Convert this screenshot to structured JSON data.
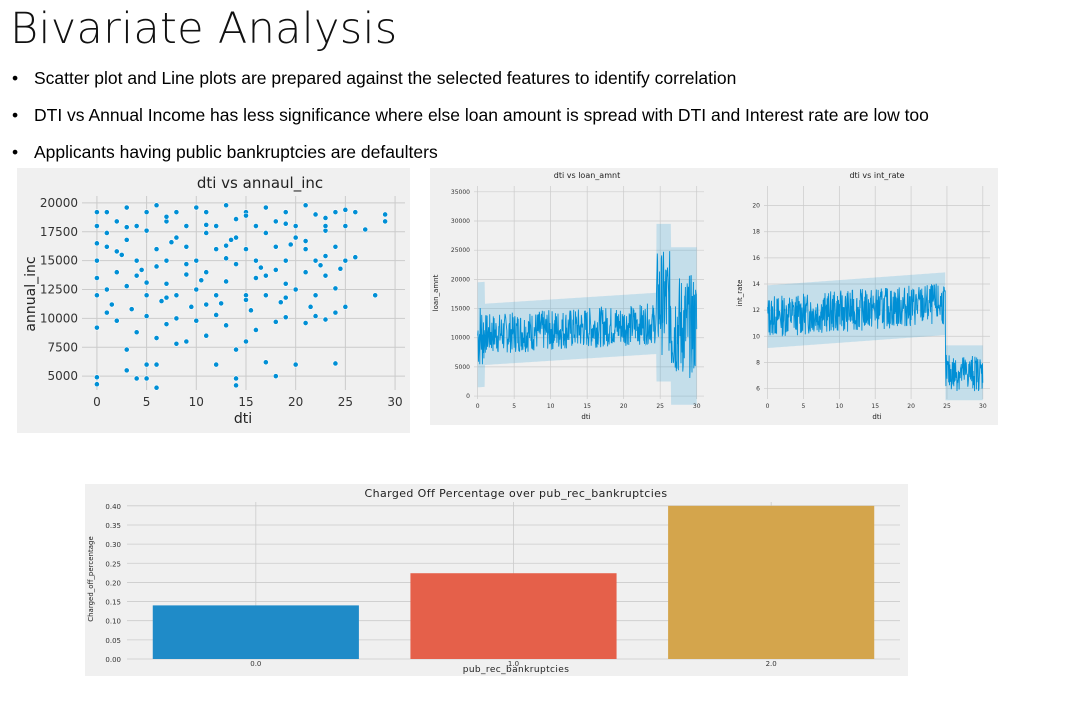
{
  "slide": {
    "title": "Bivariate Analysis",
    "bullets": [
      "Scatter plot and Line plots are prepared against the selected features to identify correlation",
      "DTI vs Annual Income has less significance where else loan amount is spread with DTI and Interest rate are low too",
      "Applicants having public bankruptcies are defaulters"
    ]
  },
  "colors": {
    "series_blue": "#008fd5",
    "bar1": "#1f8bc8",
    "bar2": "#e5604a",
    "bar3": "#d4a54c",
    "panel_bg": "#f0f0f0",
    "grid": "#cbcbcb"
  },
  "chart_data": [
    {
      "type": "scatter",
      "title": "dti vs annaul_inc",
      "xlabel": "dti",
      "ylabel": "annual_inc",
      "xlim": [
        -1.5,
        31
      ],
      "ylim": [
        3800,
        20600
      ],
      "xticks": [
        0,
        5,
        10,
        15,
        20,
        25,
        30
      ],
      "yticks": [
        5000,
        7500,
        10000,
        12500,
        15000,
        17500,
        20000
      ],
      "grid": true,
      "points": [
        [
          0,
          4900
        ],
        [
          0,
          4300
        ],
        [
          3,
          5500
        ],
        [
          4,
          4800
        ],
        [
          5,
          6000
        ],
        [
          5,
          4800
        ],
        [
          6,
          4000
        ],
        [
          6,
          6000
        ],
        [
          8,
          7800
        ],
        [
          9,
          8000
        ],
        [
          11,
          8500
        ],
        [
          12,
          6000
        ],
        [
          14,
          4200
        ],
        [
          14,
          4800
        ],
        [
          14,
          7300
        ],
        [
          15,
          8000
        ],
        [
          17,
          6200
        ],
        [
          18,
          5000
        ],
        [
          20,
          6000
        ],
        [
          24,
          6100
        ],
        [
          0,
          9200
        ],
        [
          1,
          10500
        ],
        [
          2,
          9800
        ],
        [
          3,
          7300
        ],
        [
          4,
          8800
        ],
        [
          5,
          10200
        ],
        [
          6,
          8300
        ],
        [
          7,
          9500
        ],
        [
          8,
          10000
        ],
        [
          10,
          9800
        ],
        [
          12,
          10300
        ],
        [
          13,
          9400
        ],
        [
          16,
          9000
        ],
        [
          18,
          9700
        ],
        [
          19,
          10100
        ],
        [
          21,
          9600
        ],
        [
          22,
          10200
        ],
        [
          23,
          9900
        ],
        [
          24,
          10500
        ],
        [
          25,
          11000
        ],
        [
          0,
          12000
        ],
        [
          0,
          13500
        ],
        [
          1,
          12500
        ],
        [
          2,
          14000
        ],
        [
          3,
          12800
        ],
        [
          4,
          13700
        ],
        [
          5,
          12000
        ],
        [
          6,
          14500
        ],
        [
          7,
          13000
        ],
        [
          8,
          12000
        ],
        [
          9,
          13800
        ],
        [
          10,
          12500
        ],
        [
          11,
          14000
        ],
        [
          12,
          12000
        ],
        [
          13,
          13200
        ],
        [
          14,
          14700
        ],
        [
          15,
          12000
        ],
        [
          16,
          13500
        ],
        [
          17,
          12000
        ],
        [
          18,
          14200
        ],
        [
          19,
          13000
        ],
        [
          20,
          12500
        ],
        [
          21,
          14000
        ],
        [
          22,
          12000
        ],
        [
          23,
          13700
        ],
        [
          24,
          12600
        ],
        [
          28,
          12000
        ],
        [
          0,
          15000
        ],
        [
          0,
          16500
        ],
        [
          1,
          17400
        ],
        [
          2,
          15800
        ],
        [
          3,
          16800
        ],
        [
          4,
          15000
        ],
        [
          5,
          17600
        ],
        [
          6,
          16000
        ],
        [
          7,
          15000
        ],
        [
          8,
          17000
        ],
        [
          9,
          16200
        ],
        [
          10,
          15000
        ],
        [
          11,
          17400
        ],
        [
          12,
          16000
        ],
        [
          13,
          15200
        ],
        [
          14,
          17000
        ],
        [
          15,
          16000
        ],
        [
          16,
          15000
        ],
        [
          17,
          17400
        ],
        [
          18,
          16200
        ],
        [
          19,
          15000
        ],
        [
          20,
          17000
        ],
        [
          21,
          16000
        ],
        [
          22,
          15000
        ],
        [
          23,
          17600
        ],
        [
          24,
          16200
        ],
        [
          25,
          15000
        ],
        [
          26,
          15300
        ],
        [
          0,
          18000
        ],
        [
          0,
          19200
        ],
        [
          1,
          19200
        ],
        [
          2,
          18400
        ],
        [
          3,
          19600
        ],
        [
          4,
          18000
        ],
        [
          5,
          19200
        ],
        [
          6,
          19800
        ],
        [
          7,
          18400
        ],
        [
          8,
          19200
        ],
        [
          9,
          18000
        ],
        [
          10,
          19600
        ],
        [
          11,
          19200
        ],
        [
          12,
          18000
        ],
        [
          13,
          19800
        ],
        [
          14,
          18600
        ],
        [
          15,
          19200
        ],
        [
          16,
          18000
        ],
        [
          17,
          19600
        ],
        [
          18,
          18400
        ],
        [
          19,
          19200
        ],
        [
          20,
          18000
        ],
        [
          21,
          19800
        ],
        [
          22,
          19000
        ],
        [
          23,
          18000
        ],
        [
          24,
          19200
        ],
        [
          25,
          18000
        ],
        [
          26,
          19200
        ],
        [
          27,
          17700
        ],
        [
          29,
          18400
        ],
        [
          29,
          19000
        ],
        [
          1.5,
          11200
        ],
        [
          3.5,
          10800
        ],
        [
          6.5,
          11500
        ],
        [
          9.5,
          11000
        ],
        [
          12.5,
          11300
        ],
        [
          15.5,
          10700
        ],
        [
          18.5,
          11400
        ],
        [
          21.5,
          11000
        ],
        [
          2.5,
          15500
        ],
        [
          4.5,
          14200
        ],
        [
          7.5,
          16600
        ],
        [
          10.5,
          13300
        ],
        [
          13.5,
          16800
        ],
        [
          16.5,
          14400
        ],
        [
          19.5,
          16400
        ],
        [
          22.5,
          14600
        ],
        [
          24.5,
          14300
        ],
        [
          1,
          16200
        ],
        [
          5,
          13100
        ],
        [
          9,
          14700
        ],
        [
          13,
          16300
        ],
        [
          17,
          13700
        ],
        [
          21,
          16700
        ],
        [
          23,
          15400
        ],
        [
          7,
          11800
        ],
        [
          11,
          11200
        ],
        [
          15,
          11600
        ],
        [
          19,
          11800
        ],
        [
          3,
          17900
        ],
        [
          7,
          18800
        ],
        [
          11,
          18100
        ],
        [
          15,
          18900
        ],
        [
          19,
          18200
        ],
        [
          23,
          18700
        ],
        [
          25,
          19400
        ]
      ]
    },
    {
      "type": "line",
      "title": "dti vs loan_amnt",
      "xlabel": "dti",
      "ylabel": "loan_amnt",
      "xlim": [
        -0.5,
        31
      ],
      "ylim": [
        -500,
        36000
      ],
      "xticks": [
        0,
        5,
        10,
        15,
        20,
        25,
        30
      ],
      "yticks": [
        0,
        5000,
        10000,
        15000,
        20000,
        25000,
        30000,
        35000
      ],
      "grid": true
    },
    {
      "type": "line",
      "title": "dti vs int_rate",
      "xlabel": "dti",
      "ylabel": "int_rate",
      "xlim": [
        -0.5,
        31
      ],
      "ylim": [
        5.2,
        21.5
      ],
      "xticks": [
        0,
        5,
        10,
        15,
        20,
        25,
        30
      ],
      "yticks": [
        6,
        8,
        10,
        12,
        14,
        16,
        18,
        20
      ],
      "grid": true
    },
    {
      "type": "bar",
      "title": "Charged Off Percentage over pub_rec_bankruptcies",
      "xlabel": "pub_rec_bankruptcies",
      "ylabel": "Charged_off_percentage",
      "categories": [
        "0.0",
        "1.0",
        "2.0"
      ],
      "values": [
        0.14,
        0.224,
        0.4
      ],
      "ylim": [
        0,
        0.41
      ],
      "yticks": [
        "0.00",
        "0.05",
        "0.10",
        "0.15",
        "0.20",
        "0.25",
        "0.30",
        "0.35",
        "0.40"
      ],
      "grid": true
    }
  ]
}
